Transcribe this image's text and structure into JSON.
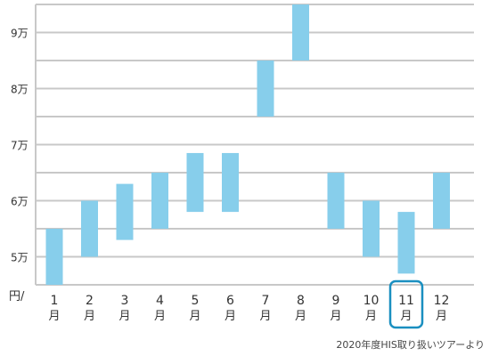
{
  "chart_data": {
    "type": "bar",
    "subtype": "floating-range",
    "unit_label": "円/",
    "categories": [
      "1",
      "2",
      "3",
      "4",
      "5",
      "6",
      "7",
      "8",
      "9",
      "10",
      "11",
      "12"
    ],
    "category_suffix": "月",
    "ranges": [
      {
        "low": 45000,
        "high": 55000
      },
      {
        "low": 50000,
        "high": 60000
      },
      {
        "low": 53000,
        "high": 63000
      },
      {
        "low": 55000,
        "high": 65000
      },
      {
        "low": 58000,
        "high": 68500
      },
      {
        "low": 58000,
        "high": 68500
      },
      {
        "low": 75000,
        "high": 85000
      },
      {
        "low": 85000,
        "high": 95000
      },
      {
        "low": 55000,
        "high": 65000
      },
      {
        "low": 50000,
        "high": 60000
      },
      {
        "low": 47000,
        "high": 58000
      },
      {
        "low": 55000,
        "high": 65000
      }
    ],
    "y_ticks": [
      {
        "value": 50000,
        "label": "5万"
      },
      {
        "value": 60000,
        "label": "6万"
      },
      {
        "value": 70000,
        "label": "7万"
      },
      {
        "value": 80000,
        "label": "8万"
      },
      {
        "value": 90000,
        "label": "9万"
      }
    ],
    "y_gridlines": [
      45000,
      50000,
      55000,
      60000,
      65000,
      70000,
      75000,
      80000,
      85000,
      90000,
      95000
    ],
    "ylim": [
      45000,
      95000
    ],
    "grid": true,
    "highlighted_category": "11"
  },
  "colors": {
    "bar": "#87ceeb",
    "grid": "#c8c8c8",
    "highlight": "#1a8fc0",
    "text": "#333333"
  },
  "source_note": "2020年度HIS取り扱いツアーより"
}
